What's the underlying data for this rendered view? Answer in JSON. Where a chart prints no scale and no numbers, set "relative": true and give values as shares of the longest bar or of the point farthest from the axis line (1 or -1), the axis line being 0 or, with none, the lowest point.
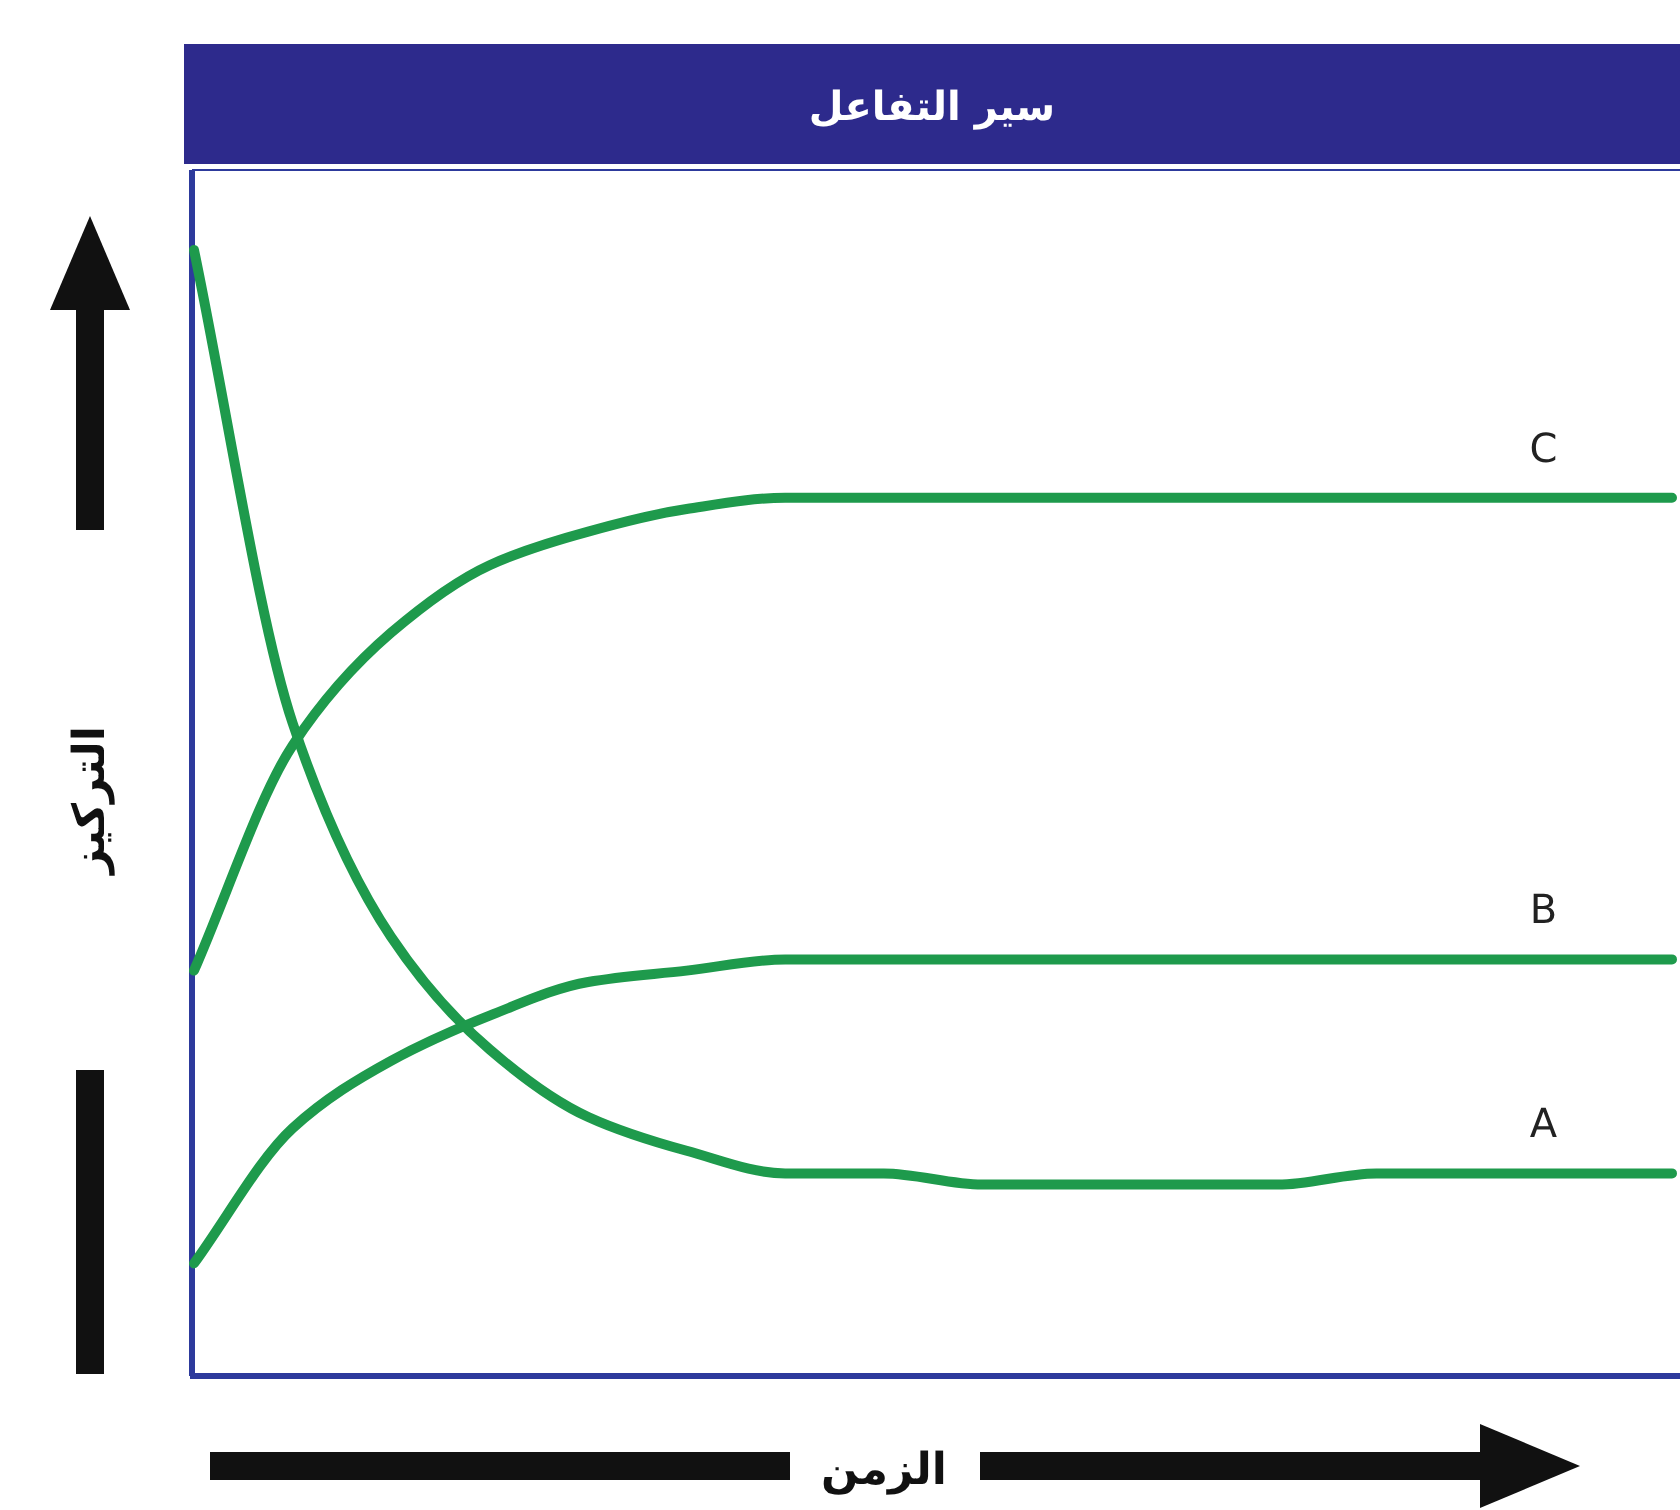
{
  "chart_data": {
    "type": "line",
    "title": "سير التفاعل",
    "xlabel": "الزمن",
    "ylabel": "التركيز",
    "relative": true,
    "legend": false,
    "grid": false,
    "marker": "none",
    "line_style": "solid",
    "categories": [
      null,
      null,
      null,
      null,
      null,
      null,
      null,
      null,
      null,
      null,
      null,
      null,
      null,
      null,
      null,
      null
    ],
    "series": [
      {
        "name": "A",
        "color": "#1e9a4c",
        "values": [
          1,
          0.58,
          0.39,
          0.29,
          0.23,
          0.2,
          0.18,
          0.18,
          0.17,
          0.17,
          0.17,
          0.17,
          0.18,
          0.18,
          0.18,
          0.18
        ]
      },
      {
        "name": "B",
        "color": "#1e9a4c",
        "values": [
          0.1,
          0.22,
          0.28,
          0.32,
          0.35,
          0.36,
          0.37,
          0.37,
          0.37,
          0.37,
          0.37,
          0.37,
          0.37,
          0.37,
          0.37,
          0.37
        ]
      },
      {
        "name": "C",
        "color": "#1e9a4c",
        "values": [
          0.36,
          0.56,
          0.66,
          0.72,
          0.75,
          0.77,
          0.78,
          0.78,
          0.78,
          0.78,
          0.78,
          0.78,
          0.78,
          0.78,
          0.78,
          0.78
        ]
      }
    ]
  }
}
